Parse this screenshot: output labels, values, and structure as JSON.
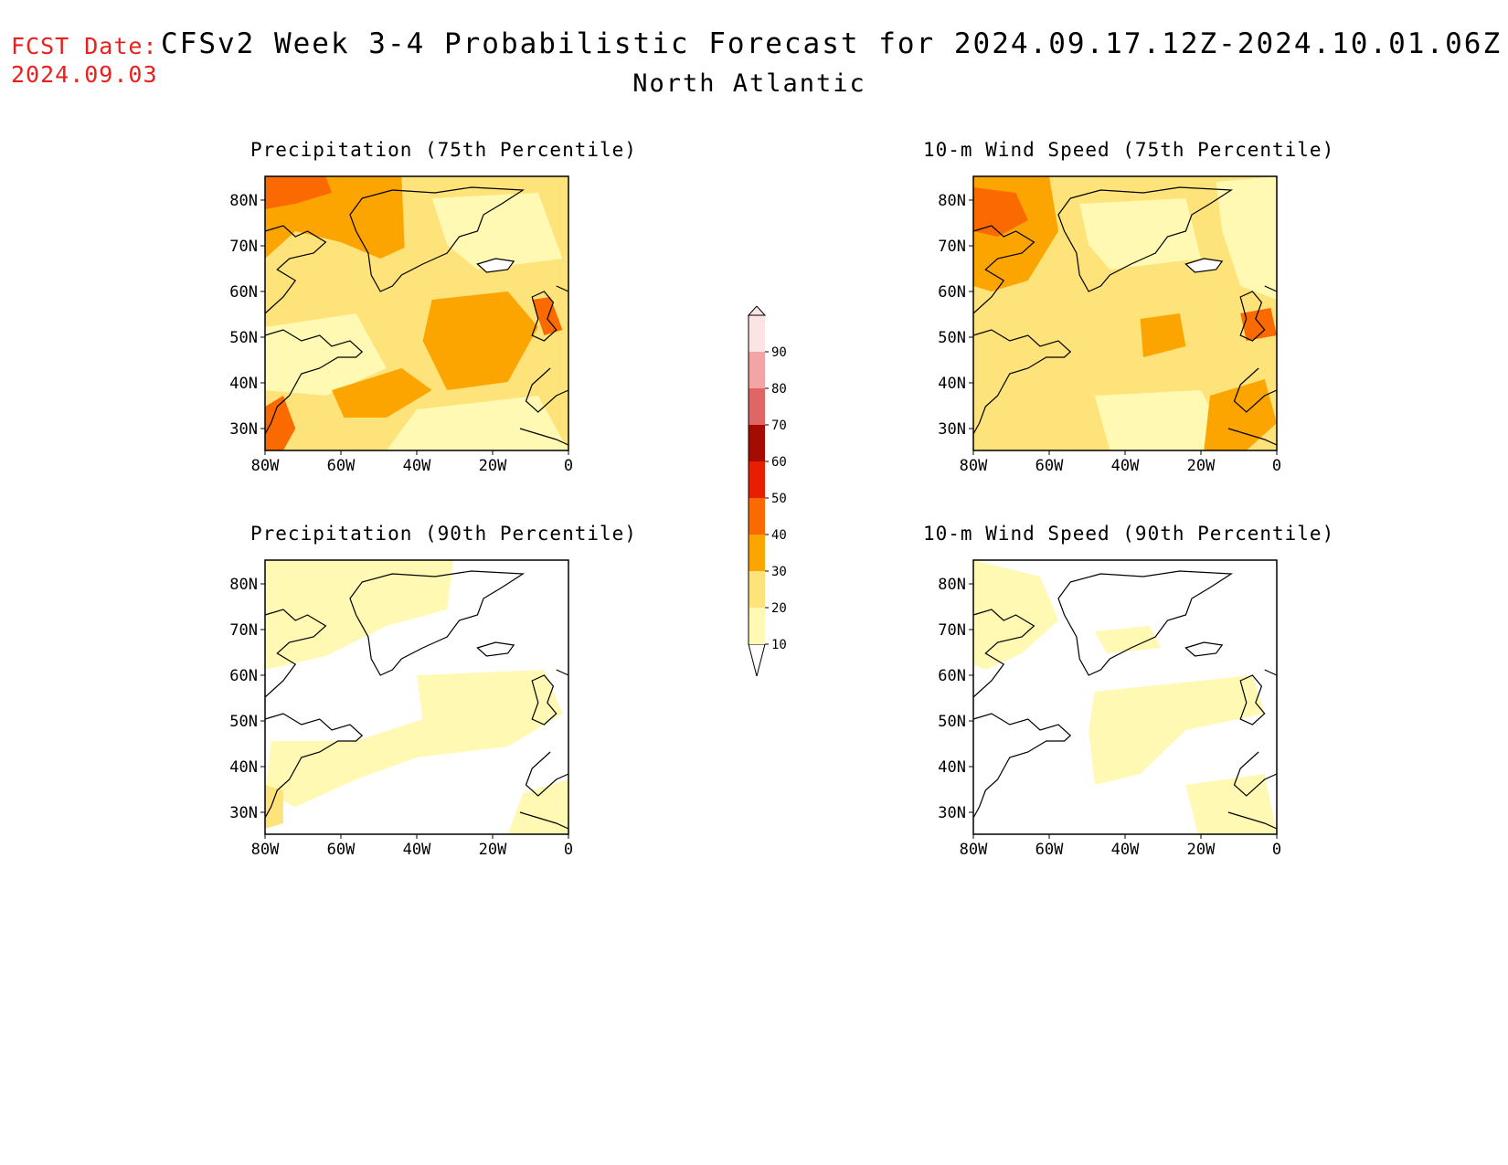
{
  "header": {
    "fcst_label": "FCST Date:",
    "fcst_date": "2024.09.03",
    "title": "CFSv2 Week 3-4 Probabilistic Forecast for 2024.09.17.12Z-2024.10.01.06Z",
    "region": "North Atlantic"
  },
  "axes": {
    "lat_ticks": [
      "80N",
      "70N",
      "60N",
      "50N",
      "40N",
      "30N"
    ],
    "lon_ticks": [
      "80W",
      "60W",
      "40W",
      "20W",
      "0"
    ]
  },
  "panels": [
    {
      "id": "precip75",
      "title": "Precipitation (75th Percentile)",
      "level": "high"
    },
    {
      "id": "wind75",
      "title": "10-m Wind Speed (75th Percentile)",
      "level": "high-wind"
    },
    {
      "id": "precip90",
      "title": "Precipitation (90th Percentile)",
      "level": "low"
    },
    {
      "id": "wind90",
      "title": "10-m Wind Speed (90th Percentile)",
      "level": "low-wind"
    }
  ],
  "colorbar": {
    "labels": [
      "10",
      "20",
      "30",
      "40",
      "50",
      "60",
      "70",
      "80",
      "90"
    ],
    "colors": [
      "#fff9b3",
      "#fde37a",
      "#fca500",
      "#fb6a00",
      "#e81e00",
      "#a60b00",
      "#e06666",
      "#f4a4a4",
      "#fde4e4"
    ]
  },
  "colors": {
    "fcst": "#e8211e",
    "white": "#ffffff"
  }
}
